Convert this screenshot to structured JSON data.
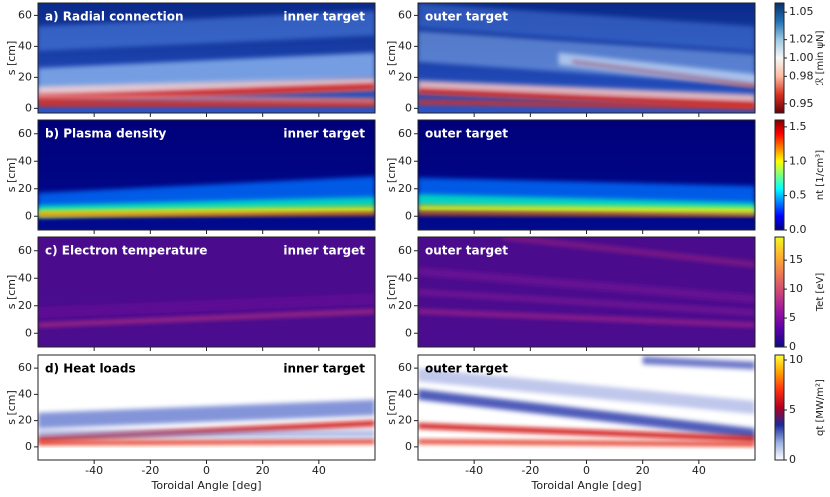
{
  "chart_data": [
    {
      "type": "heatmap",
      "title": "a) Radial connection",
      "panels": [
        "inner target",
        "outer target"
      ],
      "ylabel": "s [cm]",
      "xlim": [
        -60,
        60
      ],
      "xticks": [
        -40,
        -20,
        0,
        20,
        40
      ],
      "ylim": [
        -3,
        68
      ],
      "yticks": [
        0,
        20,
        40,
        60
      ],
      "colorbar": {
        "label": "ℛ [min ψN]",
        "lim": [
          0.94,
          1.06
        ],
        "ticks": [
          {
            "value": 0.95,
            "label": "0.95"
          },
          {
            "value": 0.98,
            "label": "0.98"
          },
          {
            "value": 1.0,
            "label": "1.00"
          },
          {
            "value": 1.02,
            "label": "1.02"
          },
          {
            "value": 1.05,
            "label": "1.05"
          }
        ],
        "colors": [
          "#67000d",
          "#d7301f",
          "#fcbba1",
          "#f7f7f7",
          "#9ecae1",
          "#2171b5",
          "#08306b"
        ]
      }
    },
    {
      "type": "heatmap",
      "title": "b) Plasma density",
      "panels": [
        "inner target",
        "outer target"
      ],
      "ylabel": "s [cm]",
      "xlim": [
        -60,
        60
      ],
      "xticks": [
        -40,
        -20,
        0,
        20,
        40
      ],
      "ylim": [
        -10,
        70
      ],
      "yticks": [
        0,
        20,
        40,
        60
      ],
      "colorbar": {
        "label": "nt [1/cm³]",
        "lim": [
          0,
          1.6
        ],
        "ticks": [
          {
            "value": 0,
            "label": "0.0"
          },
          0.5,
          {
            "value": 1,
            "label": "1.0"
          },
          1.5
        ],
        "colors": [
          "#00007f",
          "#0000ff",
          "#007fff",
          "#00ffff",
          "#7fff7f",
          "#ffff00",
          "#ff7f00",
          "#ff0000",
          "#7f0000"
        ]
      }
    },
    {
      "type": "heatmap",
      "title": "c) Electron temperature",
      "panels": [
        "inner target",
        "outer target"
      ],
      "ylabel": "s [cm]",
      "xlim": [
        -60,
        60
      ],
      "xticks": [
        -40,
        -20,
        0,
        20,
        40
      ],
      "ylim": [
        -10,
        70
      ],
      "yticks": [
        0,
        20,
        40,
        60
      ],
      "colorbar": {
        "label": "Tet [eV]",
        "lim": [
          0,
          19
        ],
        "ticks": [
          0,
          5,
          10,
          15
        ],
        "colors": [
          "#0d0887",
          "#5c01a6",
          "#9c179e",
          "#cc4778",
          "#ed7953",
          "#fdb42f",
          "#f0f921"
        ]
      }
    },
    {
      "type": "heatmap",
      "title": "d) Heat loads",
      "panels": [
        "inner target",
        "outer target"
      ],
      "ylabel": "s [cm]",
      "xlabel": "Toroidal Angle [deg]",
      "xlim": [
        -60,
        60
      ],
      "xticks": [
        -40,
        -20,
        0,
        20,
        40
      ],
      "ylim": [
        -10,
        70
      ],
      "yticks": [
        0,
        20,
        40,
        60
      ],
      "colorbar": {
        "label": "qt [MW/m²]",
        "lim": [
          0,
          10.5
        ],
        "ticks": [
          0,
          5,
          10
        ],
        "colors": [
          "#ffffff",
          "#9ab0e0",
          "#1a2a9a",
          "#b00020",
          "#ff3010",
          "#ffa000",
          "#ffff40"
        ]
      }
    }
  ]
}
